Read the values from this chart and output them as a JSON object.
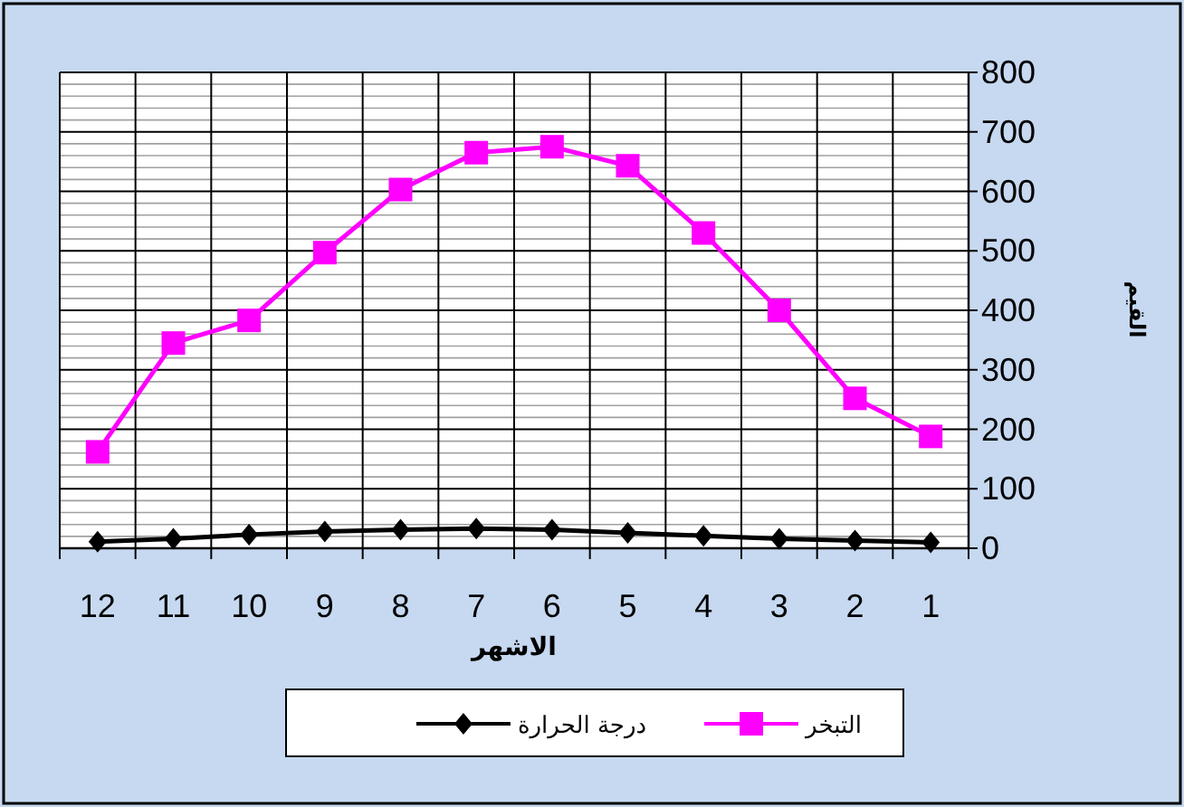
{
  "chart_data": {
    "type": "line",
    "categories": [
      "12",
      "11",
      "10",
      "9",
      "8",
      "7",
      "6",
      "5",
      "4",
      "3",
      "2",
      "1"
    ],
    "series": [
      {
        "name": "التبخر",
        "color": "#ff00ff",
        "marker": "square",
        "values": [
          162,
          345,
          383,
          497,
          603,
          665,
          675,
          643,
          530,
          400,
          252,
          188
        ]
      },
      {
        "name": "درجة الحرارة",
        "color": "#000000",
        "marker": "diamond",
        "values": [
          11,
          16,
          23,
          28,
          31,
          33,
          31,
          26,
          21,
          16,
          13,
          10
        ]
      }
    ],
    "xlabel": "الاشهر",
    "ylabel": "القيم",
    "ylim": [
      0,
      800
    ],
    "yticks": [
      0,
      100,
      200,
      300,
      400,
      500,
      600,
      700,
      800
    ],
    "grid": true,
    "legend": "bottom"
  }
}
